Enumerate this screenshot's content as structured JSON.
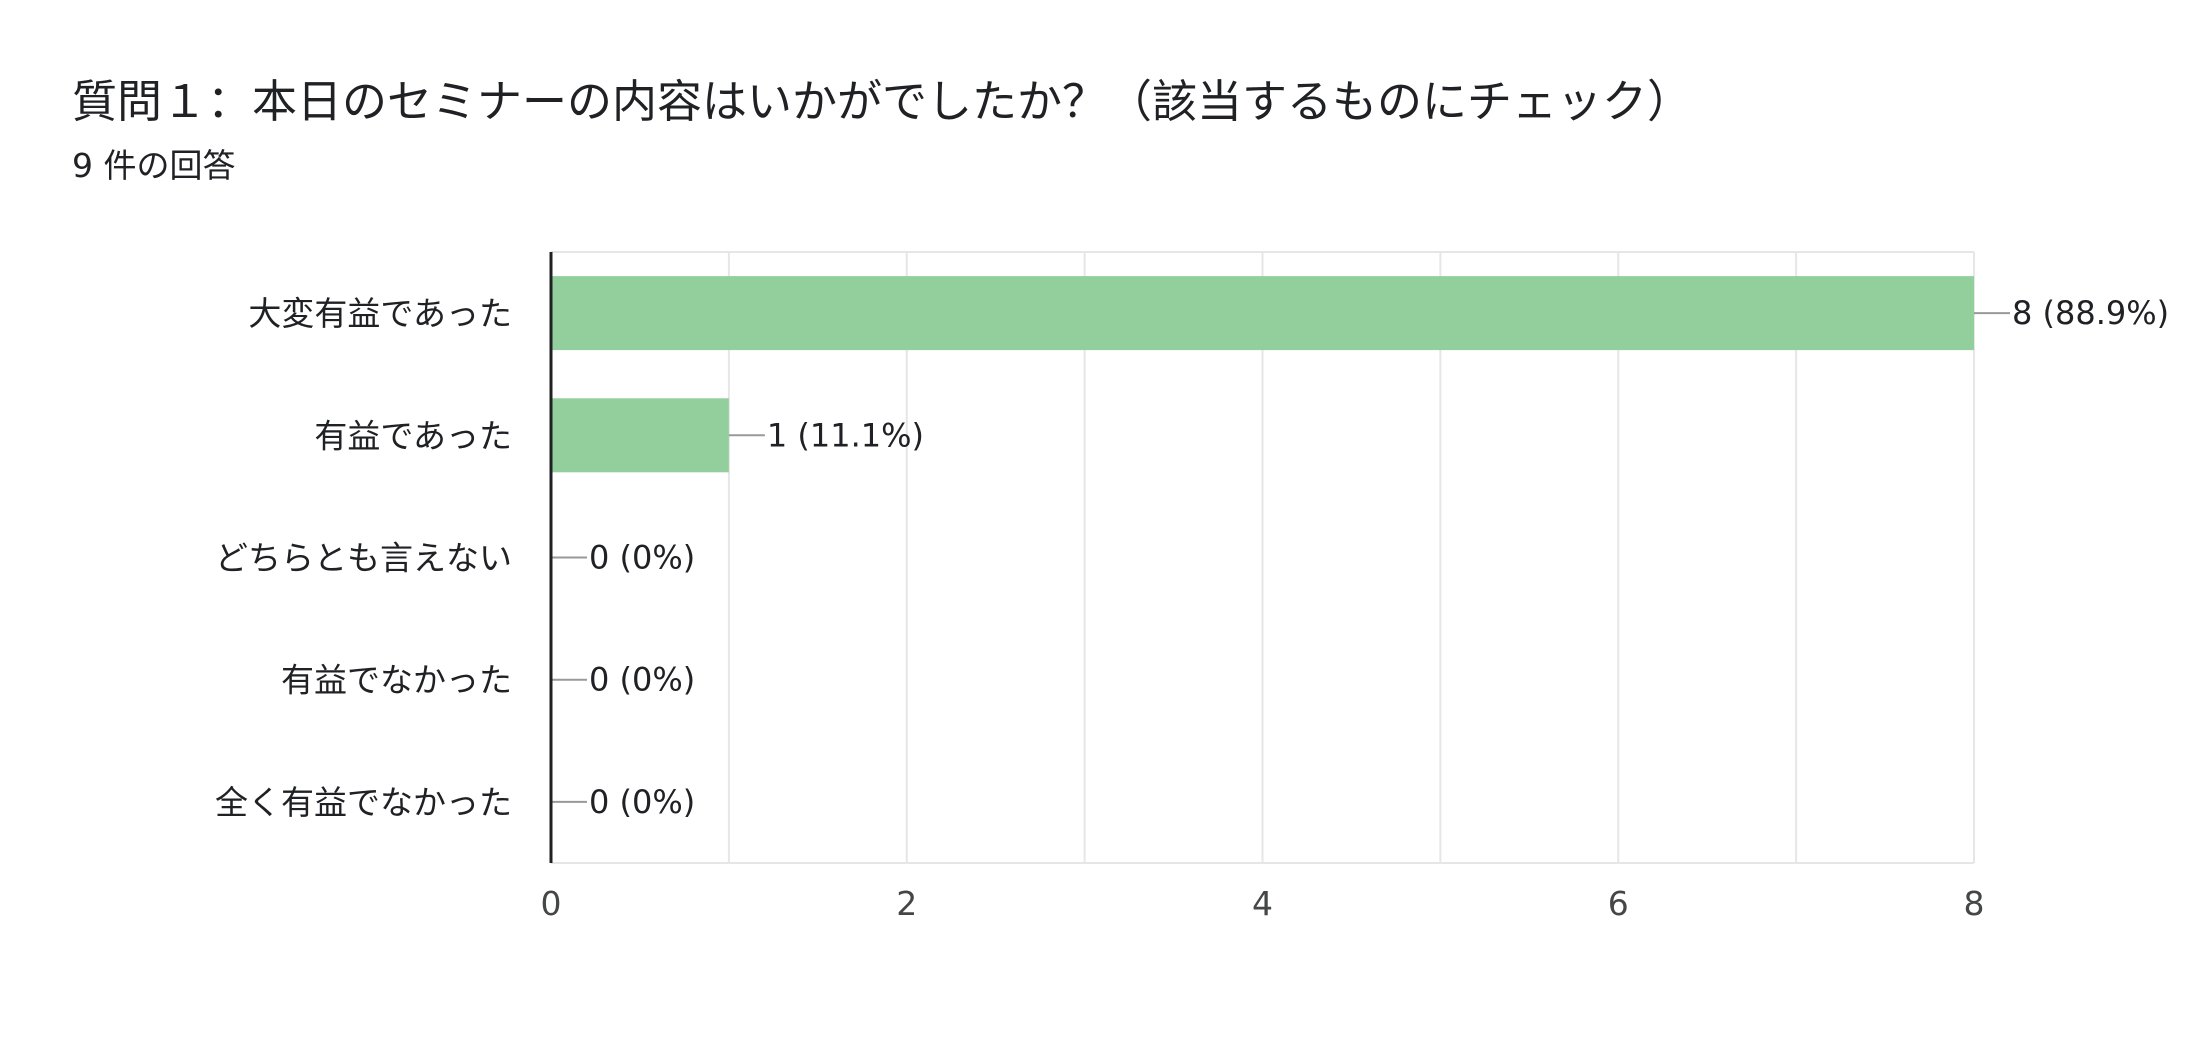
{
  "header": {
    "title": "質問１：本日のセミナーの内容はいかがでしたか？（該当するものにチェック）",
    "response_count": "9 件の回答"
  },
  "colors": {
    "bar": "#93cf9c",
    "grid": "#e6e6e6",
    "axis": "#202124",
    "leader": "#999999"
  },
  "chart_data": {
    "type": "bar",
    "orientation": "horizontal",
    "title": "質問１：本日のセミナーの内容はいかがでしたか？（該当するものにチェック）",
    "xlabel": "",
    "ylabel": "",
    "categories": [
      "大変有益であった",
      "有益であった",
      "どちらとも言えない",
      "有益でなかった",
      "全く有益でなかった"
    ],
    "values": [
      8,
      1,
      0,
      0,
      0
    ],
    "value_labels": [
      "8 (88.9%)",
      "1 (11.1%)",
      "0 (0%)",
      "0 (0%)",
      "0 (0%)"
    ],
    "xlim": [
      0,
      8
    ],
    "xticks": [
      0,
      2,
      4,
      6,
      8
    ],
    "grid": true,
    "legend": "none"
  }
}
